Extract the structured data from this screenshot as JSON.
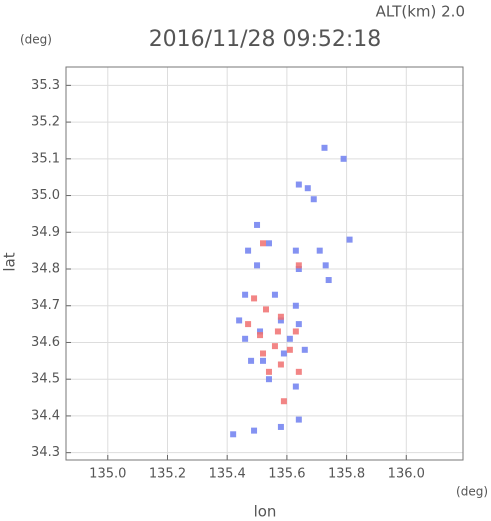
{
  "chart_data": {
    "type": "scatter",
    "title": "2016/11/28 09:52:18",
    "altitude_label": "ALT(km) 2.0",
    "y_unit": "(deg)",
    "x_unit": "(deg)",
    "x_label": "lon",
    "y_label": "lat",
    "xlim": [
      134.86,
      136.19
    ],
    "ylim": [
      34.28,
      35.35
    ],
    "xticks": [
      {
        "value": 135.0,
        "label": "135.0"
      },
      135.2,
      135.4,
      135.6,
      135.8,
      {
        "value": 136.0,
        "label": "136.0"
      }
    ],
    "yticks": [
      34.3,
      34.4,
      34.5,
      34.6,
      34.7,
      34.8,
      34.9,
      {
        "value": 35.0,
        "label": "35.0"
      },
      35.1,
      35.2,
      35.3
    ],
    "grid": true,
    "series": [
      {
        "color": "#6f7ff0",
        "x": [
          135.726,
          135.79,
          135.64,
          135.67,
          135.69,
          135.5,
          135.47,
          135.54,
          135.63,
          135.71,
          135.81,
          135.5,
          135.64,
          135.73,
          135.74,
          135.46,
          135.56,
          135.63,
          135.44,
          135.46,
          135.51,
          135.58,
          135.61,
          135.64,
          135.52,
          135.59,
          135.54,
          135.63,
          135.42,
          135.49,
          135.58,
          135.64,
          135.66,
          135.48
        ],
        "y": [
          35.13,
          35.1,
          35.03,
          35.02,
          34.99,
          34.92,
          34.85,
          34.87,
          34.85,
          34.85,
          34.88,
          34.81,
          34.8,
          34.81,
          34.77,
          34.73,
          34.73,
          34.7,
          34.66,
          34.61,
          34.63,
          34.66,
          34.61,
          34.65,
          34.55,
          34.57,
          34.5,
          34.48,
          34.35,
          34.36,
          34.37,
          34.39,
          34.58,
          34.55
        ]
      },
      {
        "color": "#f07070",
        "x": [
          135.52,
          135.64,
          135.49,
          135.53,
          135.58,
          135.51,
          135.56,
          135.63,
          135.52,
          135.58,
          135.61,
          135.54,
          135.59,
          135.64,
          135.47,
          135.57
        ],
        "y": [
          34.87,
          34.81,
          34.72,
          34.69,
          34.67,
          34.62,
          34.59,
          34.63,
          34.57,
          34.54,
          34.58,
          34.52,
          34.44,
          34.52,
          34.65,
          34.63
        ]
      }
    ]
  }
}
